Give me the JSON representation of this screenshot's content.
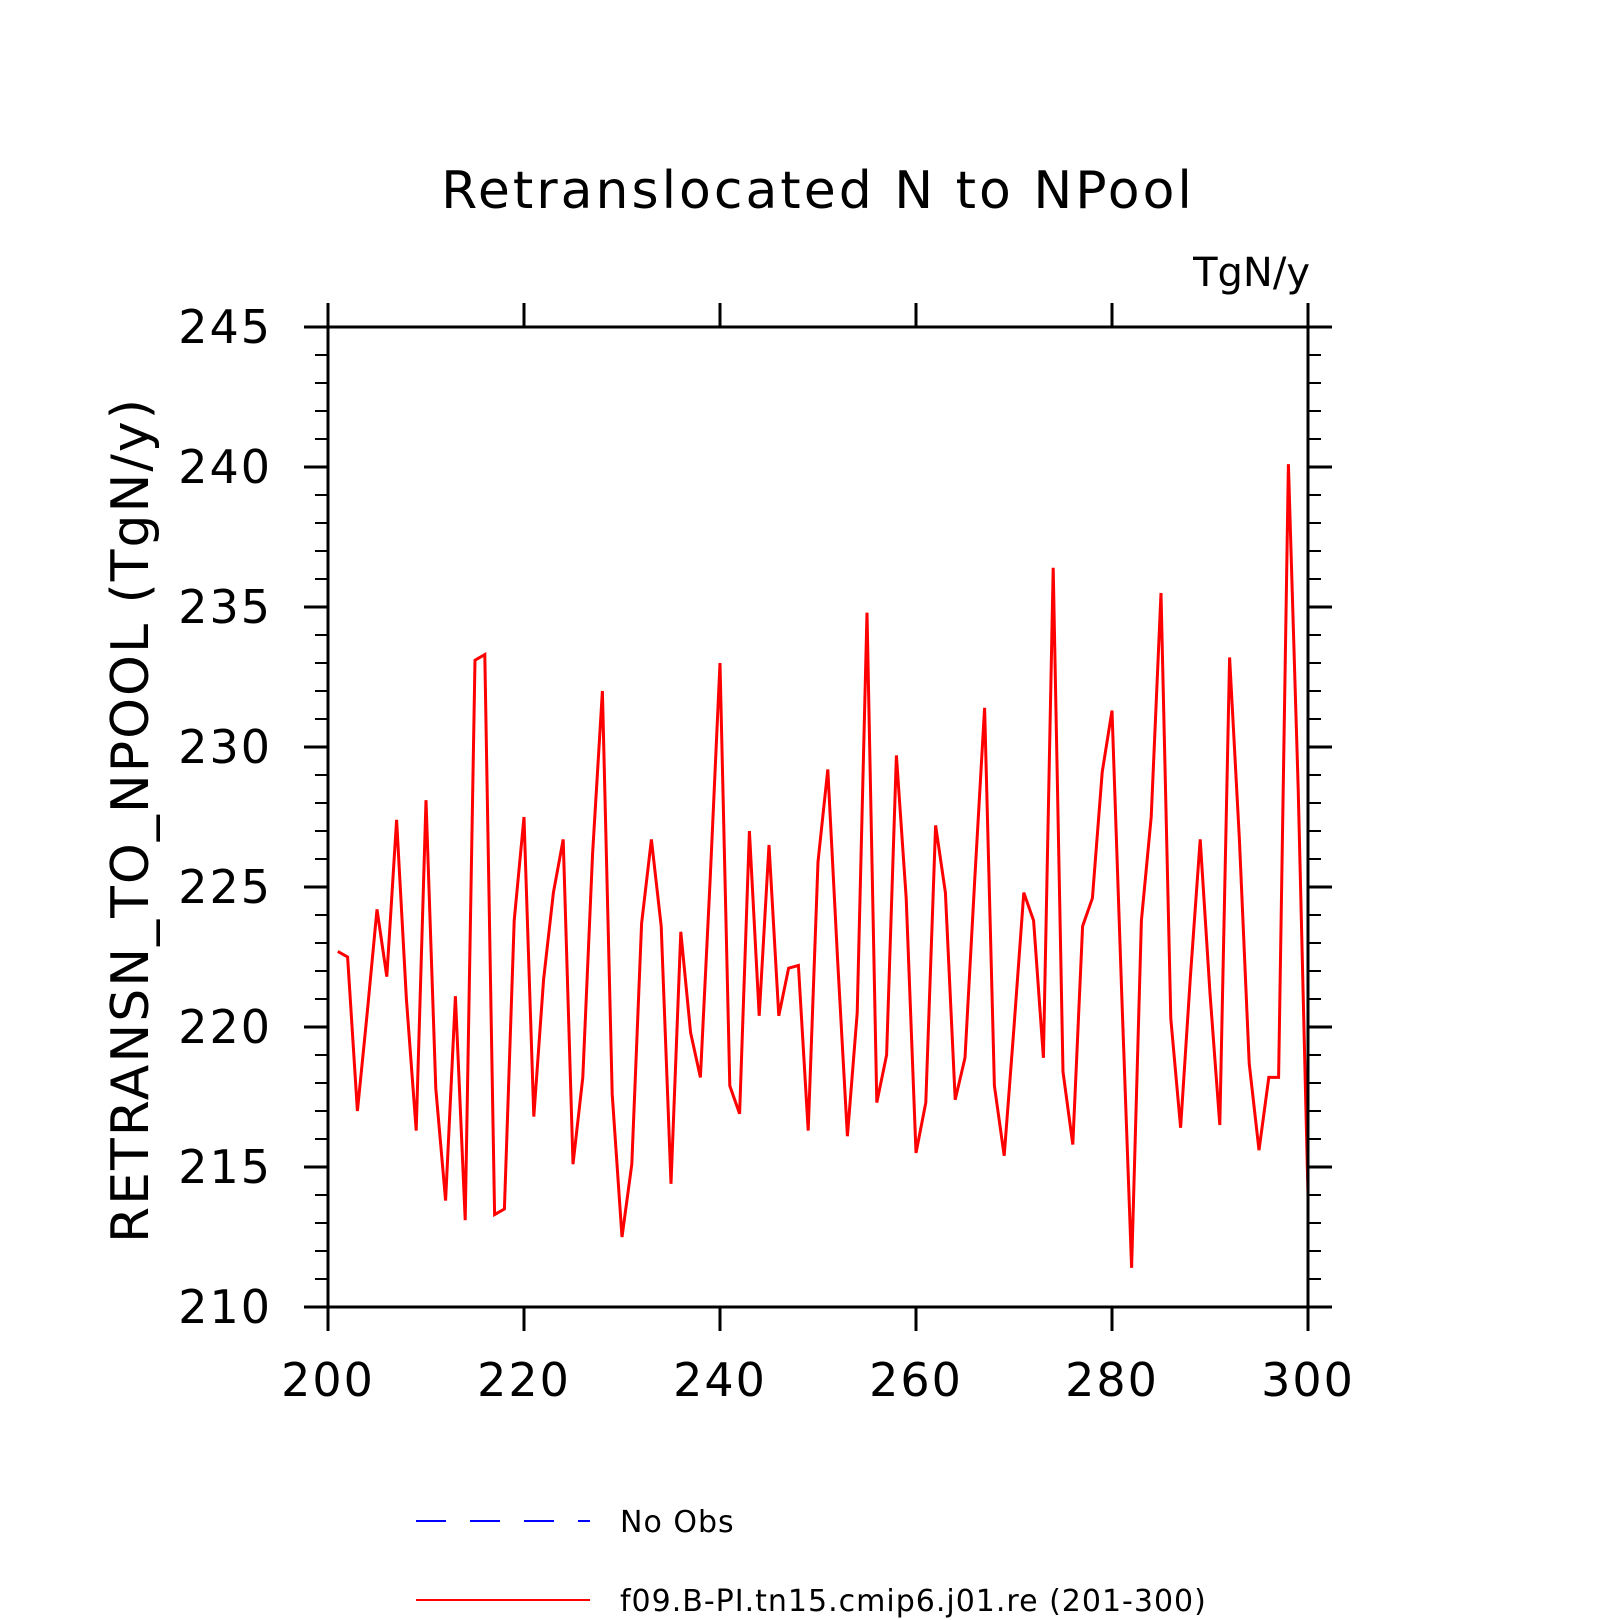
{
  "chart_data": {
    "type": "line",
    "title": "Retranslocated N to NPool",
    "units_label": "TgN/y",
    "xlabel": "",
    "ylabel": "RETRANSN_TO_NPOOL  (TgN/y)",
    "xlim": [
      200,
      300
    ],
    "ylim": [
      210,
      245
    ],
    "xticks": [
      200,
      220,
      240,
      260,
      280,
      300
    ],
    "yticks": [
      210,
      215,
      220,
      225,
      230,
      235,
      240,
      245
    ],
    "grid": false,
    "legend_position": "bottom",
    "legend": [
      {
        "label": "No Obs",
        "color": "#0000ff",
        "style": "dashed"
      },
      {
        "label": "f09.B-PI.tn15.cmip6.j01.re (201-300)",
        "color": "#ff0000",
        "style": "solid"
      }
    ],
    "series": [
      {
        "name": "f09.B-PI.tn15.cmip6.j01.re (201-300)",
        "color": "#ff0000",
        "x": [
          201,
          202,
          203,
          204,
          205,
          206,
          207,
          208,
          209,
          210,
          211,
          212,
          213,
          214,
          215,
          216,
          217,
          218,
          219,
          220,
          221,
          222,
          223,
          224,
          225,
          226,
          227,
          228,
          229,
          230,
          231,
          232,
          233,
          234,
          235,
          236,
          237,
          238,
          239,
          240,
          241,
          242,
          243,
          244,
          245,
          246,
          247,
          248,
          249,
          250,
          251,
          252,
          253,
          254,
          255,
          256,
          257,
          258,
          259,
          260,
          261,
          262,
          263,
          264,
          265,
          266,
          267,
          268,
          269,
          270,
          271,
          272,
          273,
          274,
          275,
          276,
          277,
          278,
          279,
          280,
          281,
          282,
          283,
          284,
          285,
          286,
          287,
          288,
          289,
          290,
          291,
          292,
          293,
          294,
          295,
          296,
          297,
          298,
          299,
          300
        ],
        "values": [
          222.7,
          222.5,
          217.0,
          220.5,
          224.2,
          221.8,
          227.4,
          221.0,
          216.3,
          228.1,
          217.8,
          213.8,
          221.1,
          213.1,
          233.1,
          233.3,
          213.3,
          213.5,
          223.8,
          227.5,
          216.8,
          221.7,
          224.8,
          226.7,
          215.1,
          218.2,
          226.2,
          232.0,
          217.6,
          212.5,
          215.1,
          223.7,
          226.7,
          223.6,
          214.4,
          223.4,
          219.8,
          218.2,
          225.3,
          233.0,
          217.9,
          216.9,
          227.0,
          220.4,
          226.5,
          220.4,
          222.1,
          222.2,
          216.3,
          225.9,
          229.2,
          222.4,
          216.1,
          220.5,
          234.8,
          217.3,
          219.0,
          229.7,
          224.6,
          215.5,
          217.3,
          227.2,
          224.8,
          217.4,
          218.9,
          225.3,
          231.4,
          217.9,
          215.4,
          220.0,
          224.8,
          223.8,
          218.9,
          236.4,
          218.4,
          215.8,
          223.6,
          224.6,
          229.1,
          231.3,
          221.1,
          211.4,
          223.8,
          227.5,
          235.5,
          220.3,
          216.4,
          221.8,
          226.7,
          221.2,
          216.5,
          233.2,
          226.7,
          218.7,
          215.6,
          218.2,
          218.2,
          240.1,
          228.5,
          214.0
        ]
      }
    ]
  }
}
